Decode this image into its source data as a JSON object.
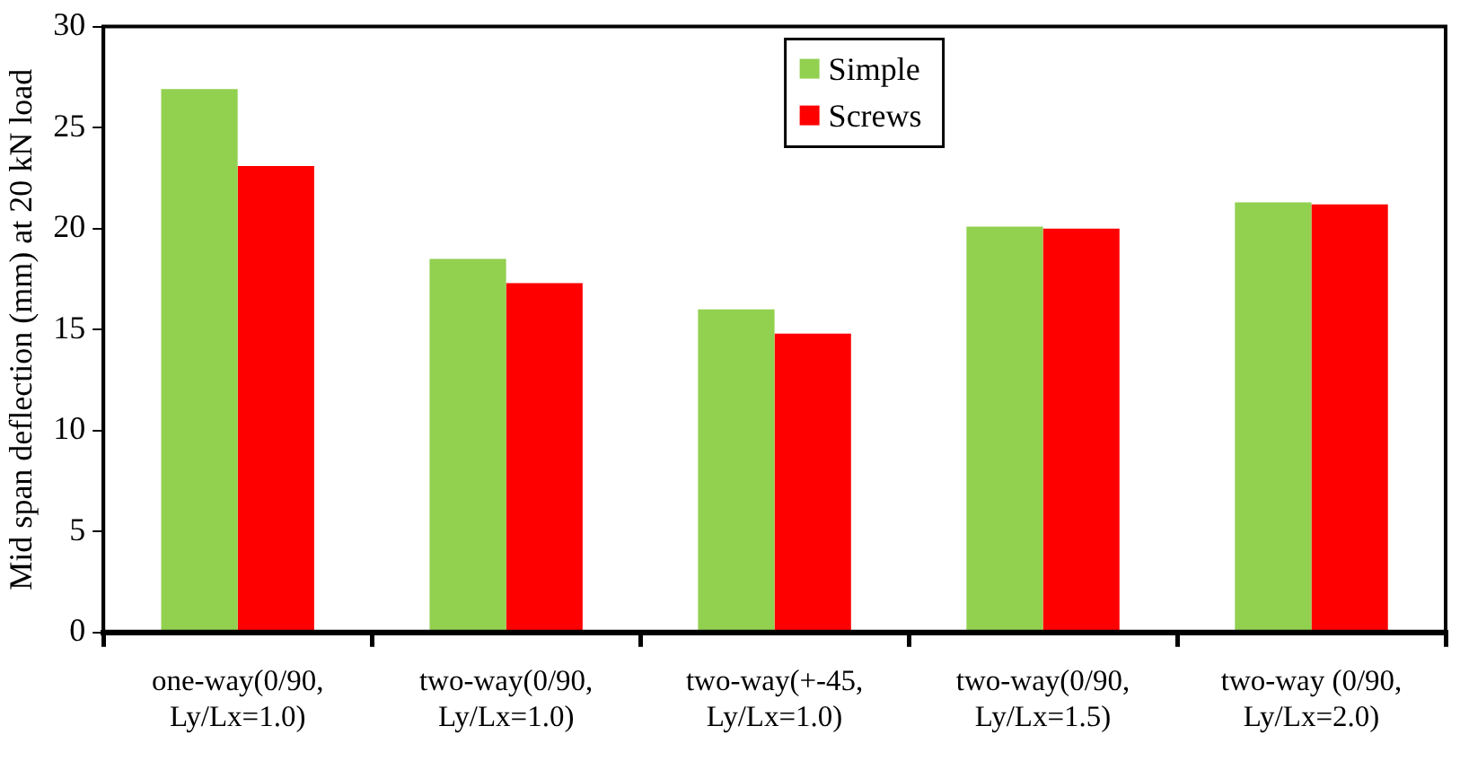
{
  "chart_data": {
    "type": "bar",
    "ylabel": "Mid span deflection (mm) at 20 kN load",
    "categories": [
      "one-way(0/90, Ly/Lx=1.0)",
      "two-way(0/90, Ly/Lx=1.0)",
      "two-way(+-45, Ly/Lx=1.0)",
      "two-way(0/90, Ly/Lx=1.5)",
      "two-way (0/90, Ly/Lx=2.0)"
    ],
    "series": [
      {
        "name": "Simple",
        "color": "#92d050",
        "values": [
          26.9,
          18.5,
          16.0,
          20.1,
          21.3
        ]
      },
      {
        "name": "Screws",
        "color": "#ff0000",
        "values": [
          23.1,
          17.3,
          14.8,
          20.0,
          21.2
        ]
      }
    ],
    "ylim": [
      0,
      30
    ],
    "yticks": [
      0,
      5,
      10,
      15,
      20,
      25,
      30
    ],
    "grid": false,
    "legend": "top"
  }
}
